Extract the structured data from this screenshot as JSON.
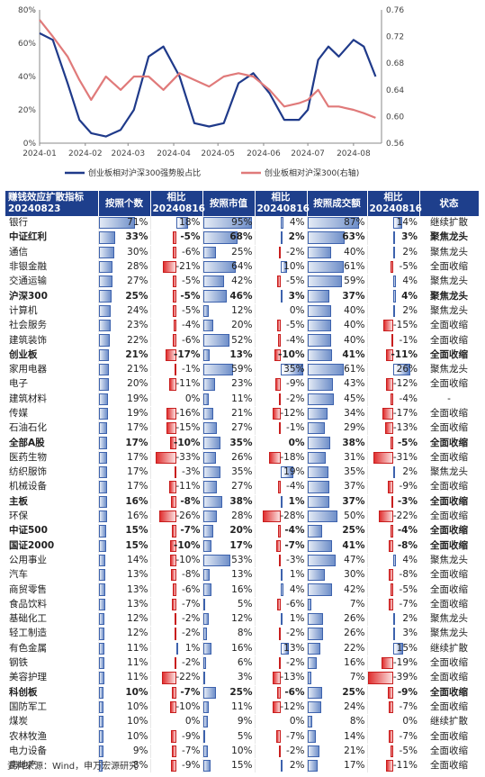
{
  "chart_data": {
    "type": "line",
    "x_ticks": [
      "2024-01",
      "2024-02",
      "2024-03",
      "2024-04",
      "2024-05",
      "2024-06",
      "2024-07",
      "2024-08"
    ],
    "y_left_ticks": [
      "0%",
      "20%",
      "40%",
      "60%",
      "80%"
    ],
    "y_left_range": [
      0,
      80
    ],
    "y_right_ticks": [
      "0.56",
      "0.60",
      "0.64",
      "0.68",
      "0.72",
      "0.76"
    ],
    "y_right_range": [
      0.56,
      0.76
    ],
    "legend_position": "bottom",
    "series": [
      {
        "name": "创业板相对沪深300强势股占比",
        "axis": "left",
        "color": "#1f3a8a",
        "x": [
          "2024-01-01",
          "2024-01-10",
          "2024-01-20",
          "2024-01-28",
          "2024-02-05",
          "2024-02-15",
          "2024-02-25",
          "2024-03-05",
          "2024-03-15",
          "2024-03-25",
          "2024-04-05",
          "2024-04-15",
          "2024-04-25",
          "2024-05-05",
          "2024-05-15",
          "2024-05-25",
          "2024-06-05",
          "2024-06-15",
          "2024-06-25",
          "2024-07-01",
          "2024-07-08",
          "2024-07-15",
          "2024-07-22",
          "2024-08-01",
          "2024-08-08",
          "2024-08-16"
        ],
        "values": [
          66,
          62,
          36,
          14,
          6,
          4,
          8,
          20,
          52,
          58,
          40,
          12,
          10,
          12,
          36,
          42,
          30,
          14,
          14,
          20,
          50,
          58,
          52,
          62,
          58,
          40
        ]
      },
      {
        "name": "创业板相对沪深300(右轴)",
        "axis": "right",
        "color": "#e07a7a",
        "x": [
          "2024-01-01",
          "2024-01-10",
          "2024-01-20",
          "2024-01-28",
          "2024-02-05",
          "2024-02-15",
          "2024-02-25",
          "2024-03-05",
          "2024-03-15",
          "2024-03-25",
          "2024-04-05",
          "2024-04-15",
          "2024-04-25",
          "2024-05-05",
          "2024-05-15",
          "2024-05-25",
          "2024-06-05",
          "2024-06-15",
          "2024-06-25",
          "2024-07-01",
          "2024-07-08",
          "2024-07-15",
          "2024-07-22",
          "2024-08-01",
          "2024-08-08",
          "2024-08-16"
        ],
        "values": [
          0.745,
          0.72,
          0.69,
          0.655,
          0.625,
          0.66,
          0.64,
          0.66,
          0.66,
          0.64,
          0.665,
          0.655,
          0.645,
          0.66,
          0.665,
          0.66,
          0.64,
          0.615,
          0.62,
          0.625,
          0.64,
          0.615,
          0.615,
          0.61,
          0.605,
          0.598
        ]
      }
    ]
  },
  "table": {
    "headers": {
      "name": "赚钱效应扩散指标20240823",
      "count": "按照个数",
      "count_chg": "相比20240816",
      "mcap": "按照市值",
      "mcap_chg": "相比20240816",
      "amount": "按照成交额",
      "amount_chg": "相比20240816",
      "status": "状态"
    },
    "rows": [
      {
        "name": "银行",
        "bold": false,
        "c": 71,
        "cc": 18,
        "m": 95,
        "mc": 4,
        "a": 87,
        "ac": 14,
        "s": "继续扩散"
      },
      {
        "name": "中证红利",
        "bold": true,
        "c": 33,
        "cc": -5,
        "m": 68,
        "mc": 2,
        "a": 63,
        "ac": 3,
        "s": "聚焦龙头"
      },
      {
        "name": "通信",
        "bold": false,
        "c": 30,
        "cc": -6,
        "m": 25,
        "mc": -2,
        "a": 40,
        "ac": 2,
        "s": "聚焦龙头"
      },
      {
        "name": "非银金融",
        "bold": false,
        "c": 28,
        "cc": -21,
        "m": 64,
        "mc": 10,
        "a": 61,
        "ac": -5,
        "s": "全面收缩"
      },
      {
        "name": "交通运输",
        "bold": false,
        "c": 27,
        "cc": -5,
        "m": 42,
        "mc": -5,
        "a": 59,
        "ac": 4,
        "s": "聚焦龙头"
      },
      {
        "name": "沪深300",
        "bold": true,
        "c": 25,
        "cc": -5,
        "m": 46,
        "mc": 3,
        "a": 37,
        "ac": 4,
        "s": "聚焦龙头"
      },
      {
        "name": "计算机",
        "bold": false,
        "c": 24,
        "cc": -5,
        "m": 12,
        "mc": 0,
        "a": 40,
        "ac": 2,
        "s": "聚焦龙头"
      },
      {
        "name": "社会服务",
        "bold": false,
        "c": 23,
        "cc": -4,
        "m": 20,
        "mc": -5,
        "a": 40,
        "ac": -15,
        "s": "全面收缩"
      },
      {
        "name": "建筑装饰",
        "bold": false,
        "c": 22,
        "cc": -6,
        "m": 52,
        "mc": -4,
        "a": 40,
        "ac": -1,
        "s": "全面收缩"
      },
      {
        "name": "创业板",
        "bold": true,
        "c": 21,
        "cc": -17,
        "m": 13,
        "mc": -10,
        "a": 41,
        "ac": -11,
        "s": "全面收缩"
      },
      {
        "name": "家用电器",
        "bold": false,
        "c": 21,
        "cc": -1,
        "m": 59,
        "mc": 35,
        "a": 61,
        "ac": 26,
        "s": "聚焦龙头"
      },
      {
        "name": "电子",
        "bold": false,
        "c": 20,
        "cc": -11,
        "m": 23,
        "mc": -9,
        "a": 43,
        "ac": -12,
        "s": "全面收缩"
      },
      {
        "name": "建筑材料",
        "bold": false,
        "c": 19,
        "cc": 0,
        "m": 11,
        "mc": -2,
        "a": 45,
        "ac": -4,
        "s": "-"
      },
      {
        "name": "传媒",
        "bold": false,
        "c": 19,
        "cc": -16,
        "m": 21,
        "mc": -12,
        "a": 34,
        "ac": -17,
        "s": "全面收缩"
      },
      {
        "name": "石油石化",
        "bold": false,
        "c": 17,
        "cc": -15,
        "m": 27,
        "mc": -1,
        "a": 29,
        "ac": -13,
        "s": "全面收缩"
      },
      {
        "name": "全部A股",
        "bold": true,
        "c": 17,
        "cc": -10,
        "m": 35,
        "mc": 0,
        "a": 38,
        "ac": -5,
        "s": "全面收缩"
      },
      {
        "name": "医药生物",
        "bold": false,
        "c": 17,
        "cc": -33,
        "m": 26,
        "mc": -18,
        "a": 31,
        "ac": -31,
        "s": "全面收缩"
      },
      {
        "name": "纺织服饰",
        "bold": false,
        "c": 17,
        "cc": -3,
        "m": 35,
        "mc": 19,
        "a": 35,
        "ac": 2,
        "s": "聚焦龙头"
      },
      {
        "name": "机械设备",
        "bold": false,
        "c": 17,
        "cc": -11,
        "m": 27,
        "mc": -4,
        "a": 37,
        "ac": -9,
        "s": "全面收缩"
      },
      {
        "name": "主板",
        "bold": true,
        "c": 16,
        "cc": -8,
        "m": 38,
        "mc": 1,
        "a": 37,
        "ac": -3,
        "s": "全面收缩"
      },
      {
        "name": "环保",
        "bold": false,
        "c": 16,
        "cc": -26,
        "m": 28,
        "mc": -28,
        "a": 50,
        "ac": -22,
        "s": "全面收缩"
      },
      {
        "name": "中证500",
        "bold": true,
        "c": 15,
        "cc": -7,
        "m": 20,
        "mc": -4,
        "a": 25,
        "ac": -4,
        "s": "全面收缩"
      },
      {
        "name": "国证2000",
        "bold": true,
        "c": 15,
        "cc": -10,
        "m": 17,
        "mc": -7,
        "a": 41,
        "ac": -8,
        "s": "全面收缩"
      },
      {
        "name": "公用事业",
        "bold": false,
        "c": 14,
        "cc": -10,
        "m": 53,
        "mc": -3,
        "a": 47,
        "ac": 4,
        "s": "聚焦龙头"
      },
      {
        "name": "汽车",
        "bold": false,
        "c": 13,
        "cc": -8,
        "m": 13,
        "mc": 1,
        "a": 30,
        "ac": -8,
        "s": "全面收缩"
      },
      {
        "name": "商贸零售",
        "bold": false,
        "c": 13,
        "cc": -6,
        "m": 16,
        "mc": 4,
        "a": 42,
        "ac": -5,
        "s": "全面收缩"
      },
      {
        "name": "食品饮料",
        "bold": false,
        "c": 13,
        "cc": -7,
        "m": 5,
        "mc": -6,
        "a": 7,
        "ac": -7,
        "s": "全面收缩"
      },
      {
        "name": "基础化工",
        "bold": false,
        "c": 12,
        "cc": -2,
        "m": 12,
        "mc": 1,
        "a": 26,
        "ac": 2,
        "s": "聚焦龙头"
      },
      {
        "name": "轻工制造",
        "bold": false,
        "c": 12,
        "cc": -2,
        "m": 8,
        "mc": -2,
        "a": 26,
        "ac": 3,
        "s": "聚焦龙头"
      },
      {
        "name": "有色金属",
        "bold": false,
        "c": 11,
        "cc": 1,
        "m": 16,
        "mc": 13,
        "a": 22,
        "ac": 15,
        "s": "继续扩散"
      },
      {
        "name": "钢铁",
        "bold": false,
        "c": 11,
        "cc": -2,
        "m": 6,
        "mc": -2,
        "a": 16,
        "ac": -19,
        "s": "全面收缩"
      },
      {
        "name": "美容护理",
        "bold": false,
        "c": 11,
        "cc": -22,
        "m": 3,
        "mc": -13,
        "a": 7,
        "ac": -39,
        "s": "全面收缩"
      },
      {
        "name": "科创板",
        "bold": true,
        "c": 10,
        "cc": -7,
        "m": 25,
        "mc": -6,
        "a": 25,
        "ac": -9,
        "s": "全面收缩"
      },
      {
        "name": "国防军工",
        "bold": false,
        "c": 10,
        "cc": -10,
        "m": 11,
        "mc": -12,
        "a": 24,
        "ac": -7,
        "s": "全面收缩"
      },
      {
        "name": "煤炭",
        "bold": false,
        "c": 10,
        "cc": 0,
        "m": 9,
        "mc": 0,
        "a": 8,
        "ac": 0,
        "s": "继续扩散"
      },
      {
        "name": "农林牧渔",
        "bold": false,
        "c": 10,
        "cc": -9,
        "m": 5,
        "mc": -7,
        "a": 14,
        "ac": -7,
        "s": "全面收缩"
      },
      {
        "name": "电力设备",
        "bold": false,
        "c": 9,
        "cc": -7,
        "m": 10,
        "mc": -2,
        "a": 21,
        "ac": -5,
        "s": "全面收缩"
      },
      {
        "name": "房地产",
        "bold": false,
        "c": 8,
        "cc": -9,
        "m": 15,
        "mc": 2,
        "a": 17,
        "ac": -11,
        "s": "全面收缩"
      }
    ]
  },
  "source": "资料来源：Wind，申万宏源研究"
}
